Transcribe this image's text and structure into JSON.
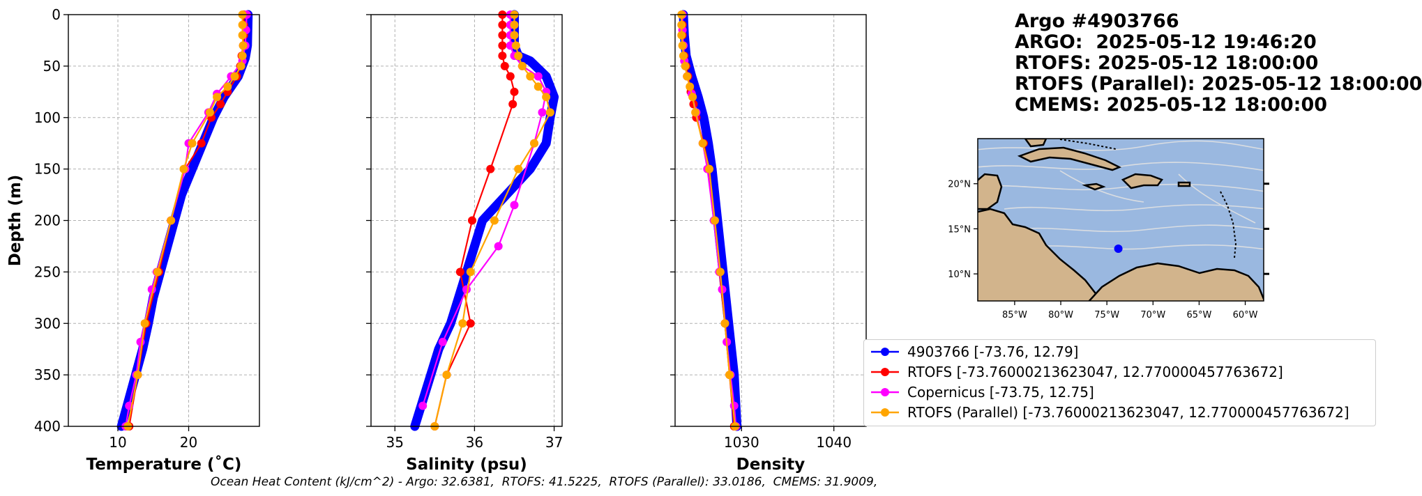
{
  "header": {
    "title": "Argo #4903766",
    "lines": [
      "ARGO:  2025-05-12 19:46:20",
      "RTOFS: 2025-05-12 18:00:00",
      "RTOFS (Parallel): 2025-05-12 18:00:00",
      "CMEMS: 2025-05-12 18:00:00"
    ]
  },
  "footer": "Ocean Heat Content (kJ/cm^2) - Argo: 32.6381,  RTOFS: 41.5225,  RTOFS (Parallel): 33.0186,  CMEMS: 31.9009,",
  "colors": {
    "argo": "#0000ff",
    "rtofs": "#ff0000",
    "copernicus": "#ff00ff",
    "parallel": "#ffa500",
    "ocean": "#9ab8e0",
    "land": "#d2b48c",
    "stream": "#e0e0e0"
  },
  "legend": [
    {
      "key": "argo",
      "label": "4903766 [-73.76, 12.79]"
    },
    {
      "key": "rtofs",
      "label": "RTOFS [-73.76000213623047, 12.770000457763672]"
    },
    {
      "key": "copernicus",
      "label": "Copernicus [-73.75, 12.75]"
    },
    {
      "key": "parallel",
      "label": "RTOFS (Parallel) [-73.76000213623047, 12.770000457763672]"
    }
  ],
  "map": {
    "lon_ticks": [
      "85°W",
      "80°W",
      "75°W",
      "70°W",
      "65°W",
      "60°W"
    ],
    "lat_ticks": [
      "20°N",
      "15°N",
      "10°N"
    ],
    "float_position": {
      "lon": -73.76,
      "lat": 12.79
    }
  },
  "chart_data": [
    {
      "type": "line",
      "xlabel": "Temperature (˚C)",
      "ylabel": "Depth (m)",
      "xlim": [
        3,
        30
      ],
      "ylim": [
        400,
        0
      ],
      "xticks": [
        10,
        20
      ],
      "yticks": [
        0,
        50,
        100,
        150,
        200,
        250,
        300,
        350,
        400
      ],
      "grid": true,
      "series": [
        {
          "name": "4903766",
          "key": "argo",
          "dense": true,
          "x": [
            28.4,
            28.3,
            28.0,
            27.0,
            25.0,
            23.5,
            22.0,
            20.5,
            19.0,
            18.0,
            17.0,
            16.0,
            15.0,
            14.3,
            13.5,
            12.5,
            11.5,
            10.5
          ],
          "y": [
            0,
            30,
            42,
            60,
            80,
            100,
            125,
            150,
            175,
            200,
            225,
            250,
            275,
            300,
            325,
            350,
            375,
            400
          ]
        },
        {
          "name": "RTOFS",
          "key": "rtofs",
          "x": [
            27.8,
            27.8,
            27.8,
            27.7,
            27.5,
            27.3,
            26.8,
            25.5,
            24.5,
            23.2,
            21.8,
            19.5,
            17.5,
            15.8,
            14.0,
            12.8,
            11.6
          ],
          "y": [
            0,
            10,
            20,
            30,
            40,
            50,
            60,
            75,
            87,
            100,
            125,
            150,
            200,
            250,
            300,
            350,
            400
          ]
        },
        {
          "name": "Copernicus",
          "key": "copernicus",
          "x": [
            28.2,
            28.1,
            28.0,
            27.6,
            26.0,
            24.0,
            22.8,
            20.0,
            19.5,
            17.5,
            15.5,
            14.8,
            13.2,
            12.6,
            11.6,
            11.1
          ],
          "y": [
            0,
            15,
            30,
            45,
            60,
            77,
            95,
            125,
            150,
            200,
            250,
            267,
            318,
            350,
            380,
            400
          ]
        },
        {
          "name": "RTOFS (Parallel)",
          "key": "parallel",
          "x": [
            27.6,
            27.6,
            27.6,
            27.7,
            27.6,
            27.4,
            26.5,
            25.5,
            24.0,
            23.0,
            20.5,
            19.3,
            17.5,
            15.6,
            13.8,
            12.8,
            11.4
          ],
          "y": [
            0,
            10,
            20,
            30,
            40,
            50,
            60,
            70,
            80,
            95,
            125,
            150,
            200,
            250,
            300,
            350,
            400
          ]
        }
      ]
    },
    {
      "type": "line",
      "xlabel": "Salinity (psu)",
      "ylabel": "",
      "xlim": [
        34.7,
        37.1
      ],
      "ylim": [
        400,
        0
      ],
      "xticks": [
        35,
        36,
        37
      ],
      "yticks": [
        0,
        50,
        100,
        150,
        200,
        250,
        300,
        350,
        400
      ],
      "grid": true,
      "series": [
        {
          "name": "4903766",
          "key": "argo",
          "dense": true,
          "x": [
            36.5,
            36.5,
            36.55,
            36.7,
            36.9,
            37.0,
            36.95,
            36.9,
            36.7,
            36.4,
            36.1,
            35.9,
            35.7,
            35.55,
            35.45,
            35.35,
            35.25
          ],
          "y": [
            0,
            30,
            40,
            45,
            60,
            80,
            100,
            125,
            150,
            175,
            200,
            250,
            300,
            325,
            350,
            375,
            400
          ]
        },
        {
          "name": "RTOFS",
          "key": "rtofs",
          "x": [
            36.35,
            36.35,
            36.35,
            36.35,
            36.35,
            36.38,
            36.45,
            36.5,
            36.48,
            36.2,
            35.97,
            35.82,
            35.95,
            35.65,
            35.5
          ],
          "y": [
            0,
            10,
            20,
            30,
            40,
            50,
            60,
            75,
            87,
            150,
            200,
            250,
            300,
            350,
            400
          ]
        },
        {
          "name": "Copernicus",
          "key": "copernicus",
          "x": [
            36.45,
            36.45,
            36.45,
            36.45,
            36.5,
            36.6,
            36.8,
            36.9,
            36.85,
            36.75,
            36.5,
            36.3,
            35.9,
            35.6,
            35.35
          ],
          "y": [
            0,
            10,
            20,
            30,
            40,
            50,
            60,
            75,
            95,
            125,
            185,
            225,
            267,
            318,
            380
          ]
        },
        {
          "name": "RTOFS (Parallel)",
          "key": "parallel",
          "x": [
            36.5,
            36.5,
            36.5,
            36.52,
            36.55,
            36.6,
            36.7,
            36.8,
            36.9,
            36.95,
            36.75,
            36.55,
            36.25,
            35.95,
            35.85,
            35.65,
            35.5
          ],
          "y": [
            0,
            10,
            20,
            30,
            40,
            50,
            60,
            70,
            80,
            95,
            125,
            150,
            200,
            250,
            300,
            350,
            400
          ]
        }
      ]
    },
    {
      "type": "line",
      "xlabel": "Density",
      "ylabel": "",
      "xlim": [
        1022.8,
        1043.5
      ],
      "ylim": [
        400,
        0
      ],
      "xticks": [
        1030,
        1040
      ],
      "yticks": [
        0,
        50,
        100,
        150,
        200,
        250,
        300,
        350,
        400
      ],
      "grid": true,
      "series": [
        {
          "name": "4903766",
          "key": "argo",
          "dense": true,
          "x": [
            1023.7,
            1023.8,
            1024.0,
            1024.6,
            1025.3,
            1025.9,
            1026.4,
            1026.8,
            1027.1,
            1027.4,
            1027.7,
            1028.0,
            1028.3,
            1028.6,
            1028.9,
            1029.2,
            1029.5
          ],
          "y": [
            0,
            20,
            40,
            60,
            80,
            100,
            125,
            150,
            175,
            200,
            225,
            250,
            275,
            300,
            325,
            350,
            400
          ]
        },
        {
          "name": "RTOFS",
          "key": "rtofs",
          "x": [
            1023.6,
            1023.6,
            1023.6,
            1023.7,
            1023.8,
            1024.0,
            1024.2,
            1024.5,
            1024.8,
            1025.1,
            1025.9,
            1026.5,
            1027.1,
            1027.6,
            1028.2,
            1028.7,
            1029.2
          ],
          "y": [
            0,
            10,
            20,
            30,
            40,
            50,
            60,
            75,
            87,
            100,
            125,
            150,
            200,
            250,
            300,
            350,
            400
          ]
        },
        {
          "name": "Copernicus",
          "key": "copernicus",
          "x": [
            1023.6,
            1023.6,
            1023.7,
            1023.8,
            1024.1,
            1024.6,
            1025.1,
            1025.8,
            1026.3,
            1027.0,
            1027.6,
            1027.9,
            1028.4,
            1028.8,
            1029.2,
            1029.4
          ],
          "y": [
            0,
            15,
            30,
            45,
            60,
            77,
            95,
            125,
            150,
            200,
            250,
            267,
            318,
            350,
            380,
            400
          ]
        },
        {
          "name": "RTOFS (Parallel)",
          "key": "parallel",
          "x": [
            1023.5,
            1023.5,
            1023.5,
            1023.6,
            1023.7,
            1023.9,
            1024.1,
            1024.4,
            1024.7,
            1025.0,
            1025.8,
            1026.5,
            1027.1,
            1027.7,
            1028.2,
            1028.7,
            1029.3
          ],
          "y": [
            0,
            10,
            20,
            30,
            40,
            50,
            60,
            70,
            80,
            95,
            125,
            150,
            200,
            250,
            300,
            350,
            400
          ]
        }
      ]
    }
  ]
}
